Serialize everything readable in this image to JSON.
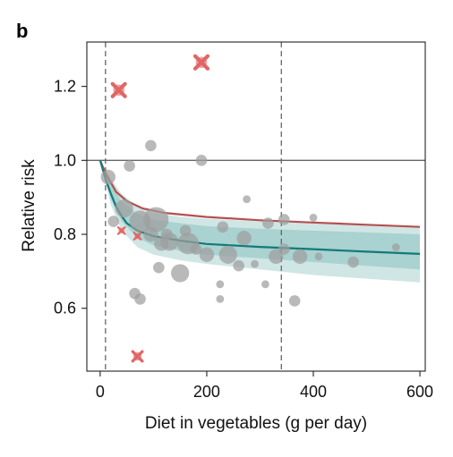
{
  "panel_label": "b",
  "chart_data": {
    "type": "scatter",
    "xlabel": "Diet in vegetables (g per day)",
    "ylabel": "Relative risk",
    "xlim": [
      -25,
      610
    ],
    "ylim": [
      0.43,
      1.32
    ],
    "x_ticks": [
      0,
      200,
      400,
      600
    ],
    "y_ticks": [
      0.6,
      0.8,
      1.0,
      1.2
    ],
    "reference_line_y": 1.0,
    "vertical_dashed_lines_x": [
      10,
      340
    ],
    "grid": false,
    "legend": "none",
    "colors": {
      "points": "#9e9e9e",
      "outliers": "#e06666",
      "red_curve": "#b5504f",
      "teal_curve": "#137a78",
      "band_outer": "#cfe6e5",
      "band_inner": "#a9d2d0",
      "reference_line": "#666666"
    },
    "curves": {
      "red": [
        [
          0,
          1.0
        ],
        [
          10,
          0.965
        ],
        [
          20,
          0.94
        ],
        [
          30,
          0.915
        ],
        [
          50,
          0.89
        ],
        [
          80,
          0.87
        ],
        [
          120,
          0.858
        ],
        [
          200,
          0.847
        ],
        [
          300,
          0.838
        ],
        [
          400,
          0.832
        ],
        [
          500,
          0.826
        ],
        [
          600,
          0.82
        ]
      ],
      "teal": [
        [
          0,
          1.0
        ],
        [
          10,
          0.95
        ],
        [
          20,
          0.91
        ],
        [
          30,
          0.875
        ],
        [
          40,
          0.85
        ],
        [
          50,
          0.83
        ],
        [
          70,
          0.81
        ],
        [
          100,
          0.795
        ],
        [
          150,
          0.783
        ],
        [
          200,
          0.774
        ],
        [
          300,
          0.766
        ],
        [
          400,
          0.76
        ],
        [
          500,
          0.753
        ],
        [
          600,
          0.747
        ]
      ],
      "band_outer_upper": [
        [
          0,
          1.0
        ],
        [
          20,
          0.95
        ],
        [
          40,
          0.91
        ],
        [
          70,
          0.875
        ],
        [
          100,
          0.858
        ],
        [
          150,
          0.848
        ],
        [
          200,
          0.842
        ],
        [
          300,
          0.835
        ],
        [
          400,
          0.83
        ],
        [
          500,
          0.825
        ],
        [
          600,
          0.82
        ]
      ],
      "band_outer_lower": [
        [
          0,
          1.0
        ],
        [
          20,
          0.88
        ],
        [
          40,
          0.81
        ],
        [
          70,
          0.765
        ],
        [
          100,
          0.745
        ],
        [
          150,
          0.73
        ],
        [
          200,
          0.72
        ],
        [
          300,
          0.705
        ],
        [
          400,
          0.69
        ],
        [
          500,
          0.68
        ],
        [
          600,
          0.67
        ]
      ],
      "band_inner_upper": [
        [
          0,
          1.0
        ],
        [
          20,
          0.935
        ],
        [
          40,
          0.89
        ],
        [
          70,
          0.855
        ],
        [
          100,
          0.84
        ],
        [
          150,
          0.83
        ],
        [
          200,
          0.822
        ],
        [
          300,
          0.815
        ],
        [
          400,
          0.81
        ],
        [
          500,
          0.805
        ],
        [
          600,
          0.8
        ]
      ],
      "band_inner_lower": [
        [
          0,
          1.0
        ],
        [
          20,
          0.895
        ],
        [
          40,
          0.835
        ],
        [
          70,
          0.79
        ],
        [
          100,
          0.77
        ],
        [
          150,
          0.755
        ],
        [
          200,
          0.745
        ],
        [
          300,
          0.735
        ],
        [
          400,
          0.725
        ],
        [
          500,
          0.715
        ],
        [
          600,
          0.705
        ]
      ]
    },
    "points": [
      {
        "x": 15,
        "y": 0.955,
        "w": 3
      },
      {
        "x": 25,
        "y": 0.835,
        "w": 2
      },
      {
        "x": 45,
        "y": 0.87,
        "w": 4
      },
      {
        "x": 55,
        "y": 0.985,
        "w": 2
      },
      {
        "x": 65,
        "y": 0.64,
        "w": 2
      },
      {
        "x": 75,
        "y": 0.625,
        "w": 2
      },
      {
        "x": 75,
        "y": 0.835,
        "w": 5
      },
      {
        "x": 95,
        "y": 0.8,
        "w": 3
      },
      {
        "x": 95,
        "y": 1.04,
        "w": 2
      },
      {
        "x": 105,
        "y": 0.84,
        "w": 6
      },
      {
        "x": 110,
        "y": 0.71,
        "w": 2
      },
      {
        "x": 115,
        "y": 0.775,
        "w": 3
      },
      {
        "x": 125,
        "y": 0.8,
        "w": 2
      },
      {
        "x": 130,
        "y": 0.78,
        "w": 4
      },
      {
        "x": 150,
        "y": 0.695,
        "w": 4
      },
      {
        "x": 160,
        "y": 0.81,
        "w": 2
      },
      {
        "x": 165,
        "y": 0.775,
        "w": 5
      },
      {
        "x": 180,
        "y": 0.76,
        "w": 2
      },
      {
        "x": 190,
        "y": 1.0,
        "w": 2
      },
      {
        "x": 200,
        "y": 0.745,
        "w": 3
      },
      {
        "x": 225,
        "y": 0.665,
        "w": 1
      },
      {
        "x": 225,
        "y": 0.625,
        "w": 1
      },
      {
        "x": 230,
        "y": 0.82,
        "w": 2
      },
      {
        "x": 240,
        "y": 0.745,
        "w": 4
      },
      {
        "x": 260,
        "y": 0.715,
        "w": 2
      },
      {
        "x": 270,
        "y": 0.79,
        "w": 3
      },
      {
        "x": 275,
        "y": 0.895,
        "w": 1
      },
      {
        "x": 290,
        "y": 0.72,
        "w": 1
      },
      {
        "x": 310,
        "y": 0.665,
        "w": 1
      },
      {
        "x": 315,
        "y": 0.83,
        "w": 2
      },
      {
        "x": 330,
        "y": 0.74,
        "w": 3
      },
      {
        "x": 345,
        "y": 0.76,
        "w": 2
      },
      {
        "x": 345,
        "y": 0.84,
        "w": 2
      },
      {
        "x": 365,
        "y": 0.62,
        "w": 2
      },
      {
        "x": 375,
        "y": 0.74,
        "w": 3
      },
      {
        "x": 400,
        "y": 0.845,
        "w": 1
      },
      {
        "x": 410,
        "y": 0.74,
        "w": 1
      },
      {
        "x": 475,
        "y": 0.725,
        "w": 2
      },
      {
        "x": 555,
        "y": 0.765,
        "w": 1
      }
    ],
    "outliers": [
      {
        "x": 35,
        "y": 1.19,
        "w": 3
      },
      {
        "x": 190,
        "y": 1.265,
        "w": 3
      },
      {
        "x": 70,
        "y": 0.47,
        "w": 2
      },
      {
        "x": 40,
        "y": 0.81,
        "w": 1
      },
      {
        "x": 70,
        "y": 0.795,
        "w": 1
      }
    ]
  }
}
